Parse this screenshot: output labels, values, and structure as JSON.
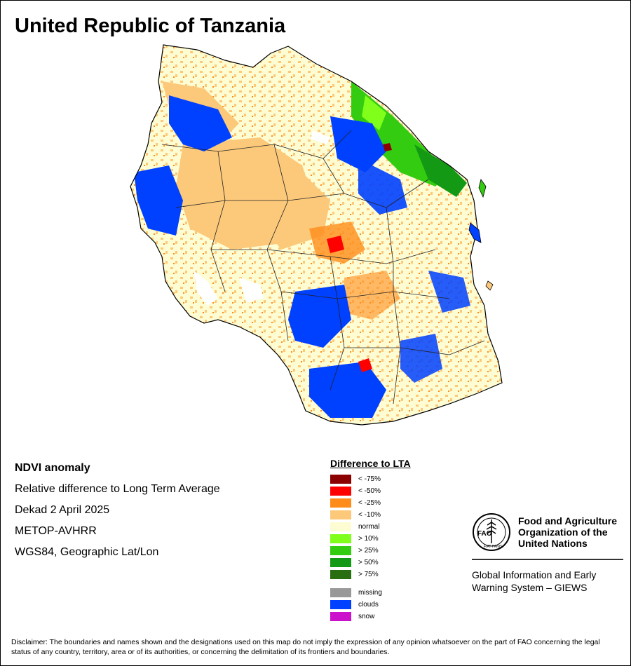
{
  "title": "United Republic of Tanzania",
  "info": {
    "product": "NDVI anomaly",
    "description": "Relative difference to Long Term Average",
    "period": "Dekad 2 April 2025",
    "sensor": "METOP-AVHRR",
    "projection": "WGS84, Geographic Lat/Lon"
  },
  "legend": {
    "title": "Difference to LTA",
    "classes": [
      {
        "label": "< -75%",
        "color": "#8b0000"
      },
      {
        "label": "< -50%",
        "color": "#ff0000"
      },
      {
        "label": "< -25%",
        "color": "#ff8c1a"
      },
      {
        "label": "< -10%",
        "color": "#fcc97a"
      },
      {
        "label": "normal",
        "color": "#fefcd2"
      },
      {
        "label": "> 10%",
        "color": "#7fff1a"
      },
      {
        "label": "> 25%",
        "color": "#33cc11"
      },
      {
        "label": "> 50%",
        "color": "#139913"
      },
      {
        "label": "> 75%",
        "color": "#2a6e12"
      }
    ],
    "other": [
      {
        "label": "missing",
        "color": "#999999"
      },
      {
        "label": "clouds",
        "color": "#0040ff"
      },
      {
        "label": "snow",
        "color": "#cc11cc"
      }
    ]
  },
  "organization": {
    "name_line1": "Food and Agriculture",
    "name_line2": "Organization of the",
    "name_line3": "United Nations",
    "logo_text": "FAO",
    "logo_motto": "FIAT PANIS",
    "system_line1": "Global Information and Early",
    "system_line2": "Warning System – GIEWS"
  },
  "disclaimer": "Disclaimer: The boundaries and names shown and the designations used on this map do not imply the expression of any opinion whatsoever on the part of FAO concerning the legal status of any country, territory, area or of its authorities, or concerning the delimitation of its frontiers and boundaries."
}
